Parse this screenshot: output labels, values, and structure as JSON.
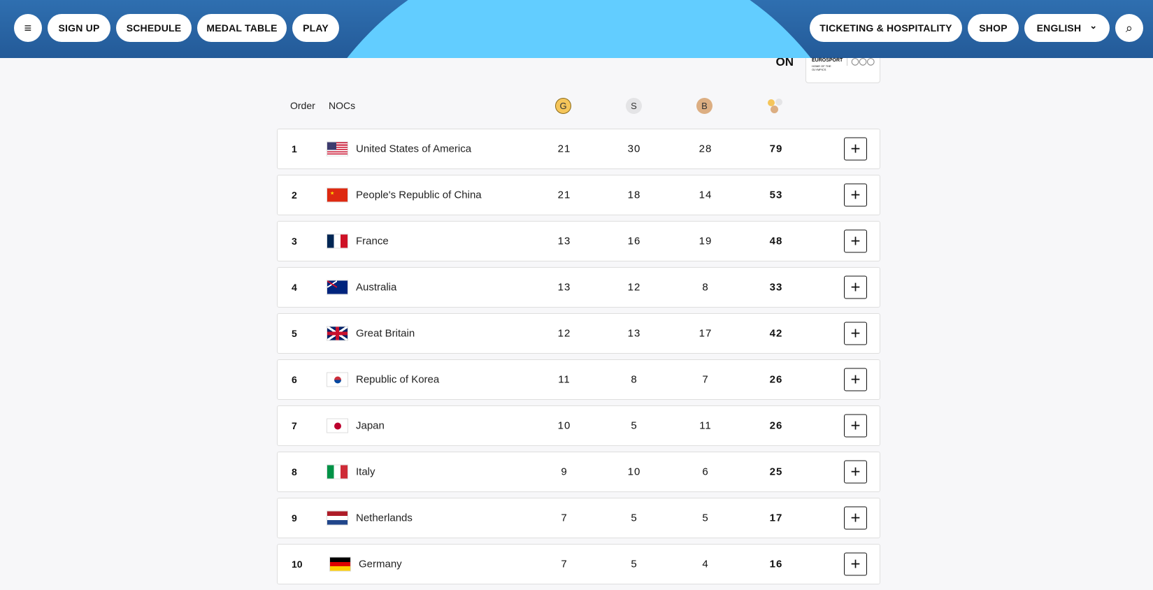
{
  "nav": {
    "menu_icon": "≡",
    "left": [
      "SIGN UP",
      "SCHEDULE",
      "MEDAL TABLE",
      "PLAY"
    ],
    "right": {
      "ticketing": "TICKETING & HOSPITALITY",
      "shop": "SHOP",
      "language": "ENGLISH",
      "chevron": "⌄",
      "search_icon": "⌕"
    }
  },
  "promo": {
    "line2": "ON",
    "logo_text": "EUROSPORT",
    "logo_sub": "HOME OF THE OLYMPICS"
  },
  "table": {
    "headers": {
      "order": "Order",
      "nocs": "NOCs",
      "gold": "G",
      "silver": "S",
      "bronze": "B"
    },
    "colors": {
      "gold": "#f5c55a",
      "silver": "#e4e4e6",
      "bronze": "#dcae82"
    },
    "rows": [
      {
        "order": "1",
        "noc": "United States of America",
        "flag": "usa",
        "gold": "21",
        "silver": "30",
        "bronze": "28",
        "total": "79"
      },
      {
        "order": "2",
        "noc": "People's Republic of China",
        "flag": "chn",
        "gold": "21",
        "silver": "18",
        "bronze": "14",
        "total": "53"
      },
      {
        "order": "3",
        "noc": "France",
        "flag": "fra",
        "gold": "13",
        "silver": "16",
        "bronze": "19",
        "total": "48"
      },
      {
        "order": "4",
        "noc": "Australia",
        "flag": "aus",
        "gold": "13",
        "silver": "12",
        "bronze": "8",
        "total": "33"
      },
      {
        "order": "5",
        "noc": "Great Britain",
        "flag": "gbr",
        "gold": "12",
        "silver": "13",
        "bronze": "17",
        "total": "42"
      },
      {
        "order": "6",
        "noc": "Republic of Korea",
        "flag": "kor",
        "gold": "11",
        "silver": "8",
        "bronze": "7",
        "total": "26"
      },
      {
        "order": "7",
        "noc": "Japan",
        "flag": "jpn",
        "gold": "10",
        "silver": "5",
        "bronze": "11",
        "total": "26"
      },
      {
        "order": "8",
        "noc": "Italy",
        "flag": "ita",
        "gold": "9",
        "silver": "10",
        "bronze": "6",
        "total": "25"
      },
      {
        "order": "9",
        "noc": "Netherlands",
        "flag": "ned",
        "gold": "7",
        "silver": "5",
        "bronze": "5",
        "total": "17"
      },
      {
        "order": "10",
        "noc": "Germany",
        "flag": "ger",
        "gold": "7",
        "silver": "5",
        "bronze": "4",
        "total": "16"
      }
    ],
    "expand_label": "+"
  }
}
